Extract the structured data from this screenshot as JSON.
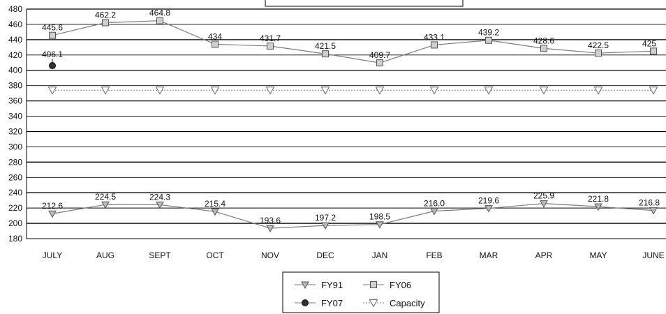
{
  "chart_data": {
    "type": "line",
    "categories": [
      "JULY",
      "AUG",
      "SEPT",
      "OCT",
      "NOV",
      "DEC",
      "JAN",
      "FEB",
      "MAR",
      "APR",
      "MAY",
      "JUNE"
    ],
    "ylim": [
      180,
      480
    ],
    "y_ticks": [
      180,
      200,
      220,
      240,
      260,
      280,
      300,
      320,
      340,
      360,
      380,
      400,
      420,
      440,
      460,
      480
    ],
    "grid": true,
    "legend_position": "bottom",
    "series": [
      {
        "name": "FY91",
        "marker": "triangle-down-filled",
        "values": [
          212.6,
          224.5,
          224.3,
          215.4,
          193.6,
          197.2,
          198.5,
          216.0,
          219.6,
          225.9,
          221.8,
          216.8
        ],
        "labels": [
          "212.6",
          "224.5",
          "224.3",
          "215.4",
          "193.6",
          "197.2",
          "198.5",
          "216.0",
          "219.6",
          "225.9",
          "221.8",
          "216.8"
        ]
      },
      {
        "name": "FY06",
        "marker": "square",
        "values": [
          445.6,
          462.2,
          464.8,
          434,
          431.7,
          421.5,
          409.7,
          433.1,
          439.2,
          428.6,
          422.5,
          425
        ],
        "labels": [
          "445.6",
          "462.2",
          "464.8",
          "434",
          "431.7",
          "421.5",
          "409.7",
          "433.1",
          "439.2",
          "428.6",
          "422.5",
          "425"
        ]
      },
      {
        "name": "FY07",
        "marker": "circle",
        "values": [
          406.1,
          null,
          null,
          null,
          null,
          null,
          null,
          null,
          null,
          null,
          null,
          null
        ],
        "labels": [
          "406.1",
          "",
          "",
          "",
          "",
          "",
          "",
          "",
          "",
          "",
          "",
          ""
        ]
      },
      {
        "name": "Capacity",
        "marker": "triangle-down-open",
        "values": [
          374,
          374,
          374,
          374,
          374,
          374,
          374,
          374,
          374,
          374,
          374,
          374
        ],
        "labels": []
      }
    ],
    "colors": {
      "line": "#7a7a7a",
      "grid": "#000000",
      "marker_fill": "#cfcfcf",
      "fy07": "#333333"
    }
  }
}
